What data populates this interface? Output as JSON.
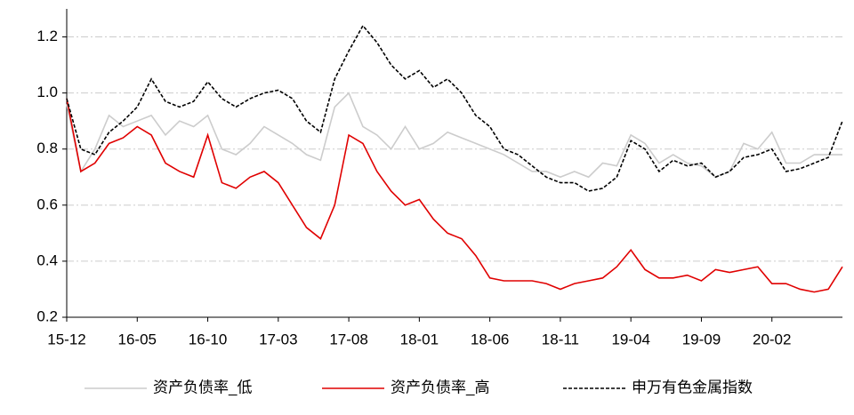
{
  "chart_data": {
    "type": "line",
    "categories": [
      "15-12",
      null,
      null,
      null,
      null,
      "16-05",
      null,
      null,
      null,
      null,
      "16-10",
      null,
      null,
      null,
      null,
      "17-03",
      null,
      null,
      null,
      null,
      "17-08",
      null,
      null,
      null,
      null,
      "18-01",
      null,
      null,
      null,
      null,
      "18-06",
      null,
      null,
      null,
      null,
      "18-11",
      null,
      null,
      null,
      null,
      "19-04",
      null,
      null,
      null,
      null,
      "19-09",
      null,
      null,
      null,
      null,
      "20-02",
      null,
      null,
      null,
      null,
      null
    ],
    "series": [
      {
        "name": "资产负债率_低",
        "color": "#cccccc",
        "dash": false,
        "values": [
          0.96,
          0.72,
          0.8,
          0.92,
          0.88,
          0.9,
          0.92,
          0.85,
          0.9,
          0.88,
          0.92,
          0.8,
          0.78,
          0.82,
          0.88,
          0.85,
          0.82,
          0.78,
          0.76,
          0.95,
          1.0,
          0.88,
          0.85,
          0.8,
          0.88,
          0.8,
          0.82,
          0.86,
          0.84,
          0.82,
          0.8,
          0.78,
          0.75,
          0.72,
          0.72,
          0.7,
          0.72,
          0.7,
          0.75,
          0.74,
          0.85,
          0.82,
          0.75,
          0.78,
          0.75,
          0.74,
          0.7,
          0.72,
          0.82,
          0.8,
          0.86,
          0.75,
          0.75,
          0.78,
          0.78,
          0.78
        ]
      },
      {
        "name": "资产负债率_高",
        "color": "#e00000",
        "dash": false,
        "values": [
          0.98,
          0.72,
          0.75,
          0.82,
          0.84,
          0.88,
          0.85,
          0.75,
          0.72,
          0.7,
          0.85,
          0.68,
          0.66,
          0.7,
          0.72,
          0.68,
          0.6,
          0.52,
          0.48,
          0.6,
          0.85,
          0.82,
          0.72,
          0.65,
          0.6,
          0.62,
          0.55,
          0.5,
          0.48,
          0.42,
          0.34,
          0.33,
          0.33,
          0.33,
          0.32,
          0.3,
          0.32,
          0.33,
          0.34,
          0.38,
          0.44,
          0.37,
          0.34,
          0.34,
          0.35,
          0.33,
          0.37,
          0.36,
          0.37,
          0.38,
          0.32,
          0.32,
          0.3,
          0.29,
          0.3,
          0.38
        ]
      },
      {
        "name": "申万有色金属指数",
        "color": "#000000",
        "dash": true,
        "values": [
          0.98,
          0.8,
          0.78,
          0.86,
          0.9,
          0.95,
          1.05,
          0.97,
          0.95,
          0.97,
          1.04,
          0.98,
          0.95,
          0.98,
          1.0,
          1.01,
          0.98,
          0.9,
          0.86,
          1.05,
          1.15,
          1.24,
          1.18,
          1.1,
          1.05,
          1.08,
          1.02,
          1.05,
          1.0,
          0.92,
          0.88,
          0.8,
          0.78,
          0.74,
          0.7,
          0.68,
          0.68,
          0.65,
          0.66,
          0.7,
          0.83,
          0.8,
          0.72,
          0.76,
          0.74,
          0.75,
          0.7,
          0.72,
          0.77,
          0.78,
          0.8,
          0.72,
          0.73,
          0.75,
          0.77,
          0.9
        ]
      }
    ],
    "ylim": [
      0.2,
      1.3
    ],
    "yticks": [
      0.2,
      0.4,
      0.6,
      0.8,
      {
        "value": 1,
        "label": "1.0"
      },
      1.2
    ],
    "grid": true,
    "legend": "bottom"
  }
}
